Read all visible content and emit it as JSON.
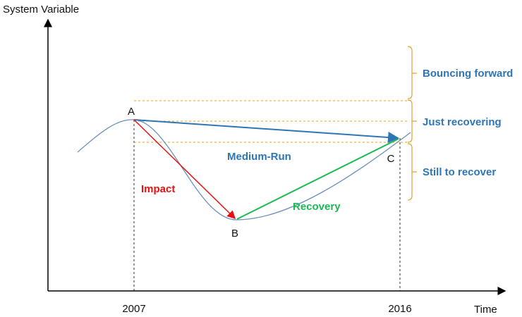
{
  "axes": {
    "y_label": "System Variable",
    "x_label": "Time"
  },
  "x_ticks": [
    "2007",
    "2016"
  ],
  "points": [
    "A",
    "B",
    "C"
  ],
  "arrows": [
    "Medium-Run",
    "Impact",
    "Recovery"
  ],
  "zones": [
    "Bouncing forward",
    "Just recovering",
    "Still to recover"
  ]
}
